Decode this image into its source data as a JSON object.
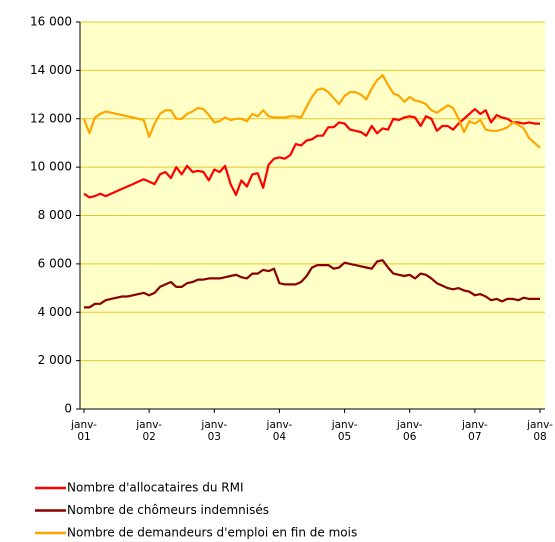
{
  "chart_data": {
    "type": "line",
    "categories": [
      "janv-01",
      null,
      null,
      null,
      null,
      null,
      null,
      null,
      null,
      null,
      null,
      null,
      "janv-02",
      null,
      null,
      null,
      null,
      null,
      null,
      null,
      null,
      null,
      null,
      null,
      "janv-03",
      null,
      null,
      null,
      null,
      null,
      null,
      null,
      null,
      null,
      null,
      null,
      "janv-04",
      null,
      null,
      null,
      null,
      null,
      null,
      null,
      null,
      null,
      null,
      null,
      "janv-05",
      null,
      null,
      null,
      null,
      null,
      null,
      null,
      null,
      null,
      null,
      null,
      "janv-06",
      null,
      null,
      null,
      null,
      null,
      null,
      null,
      null,
      null,
      null,
      null,
      "janv-07",
      null,
      null,
      null,
      null,
      null,
      null,
      null,
      null,
      null,
      null,
      null,
      "janv-08"
    ],
    "series": [
      {
        "name": "Nombre d'allocataires du RMI",
        "color": "#ff0000",
        "values": [
          8900,
          8750,
          8800,
          8900,
          8800,
          8900,
          9000,
          9100,
          9200,
          9300,
          9400,
          9500,
          9400,
          9300,
          9700,
          9800,
          9550,
          10000,
          9700,
          10050,
          9800,
          9850,
          9800,
          9450,
          9900,
          9800,
          10050,
          9300,
          8850,
          9450,
          9200,
          9700,
          9750,
          9150,
          10100,
          10350,
          10400,
          10350,
          10500,
          10950,
          10900,
          11100,
          11150,
          11300,
          11300,
          11650,
          11650,
          11850,
          11800,
          11550,
          11500,
          11450,
          11300,
          11700,
          11400,
          11600,
          11550,
          12000,
          11950,
          12050,
          12100,
          12050,
          11700,
          12100,
          12000,
          11500,
          11700,
          11700,
          11550,
          11800,
          12000,
          12200,
          12400,
          12200,
          12350,
          11850,
          12150,
          12050,
          12000,
          11850,
          11850,
          11800,
          11850,
          11800,
          11800
        ]
      },
      {
        "name": "Nombre de chômeurs indemnisés",
        "color": "#8b0000",
        "values": [
          4200,
          4200,
          4350,
          4350,
          4500,
          4550,
          4600,
          4650,
          4650,
          4700,
          4750,
          4800,
          4700,
          4800,
          5050,
          5150,
          5250,
          5050,
          5050,
          5200,
          5250,
          5350,
          5350,
          5400,
          5400,
          5400,
          5450,
          5500,
          5550,
          5450,
          5400,
          5600,
          5600,
          5750,
          5700,
          5800,
          5200,
          5150,
          5150,
          5150,
          5250,
          5500,
          5850,
          5950,
          5950,
          5950,
          5800,
          5850,
          6050,
          6000,
          5950,
          5900,
          5850,
          5800,
          6100,
          6150,
          5850,
          5600,
          5550,
          5500,
          5550,
          5400,
          5600,
          5550,
          5400,
          5200,
          5100,
          5000,
          4950,
          5000,
          4900,
          4850,
          4700,
          4750,
          4650,
          4500,
          4550,
          4450,
          4550,
          4550,
          4500,
          4600,
          4550,
          4550,
          4550
        ]
      },
      {
        "name": "Nombre de demandeurs d'emploi en fin de mois",
        "color": "#ffa500",
        "values": [
          12000,
          11400,
          12050,
          12200,
          12300,
          12250,
          12200,
          12150,
          12100,
          12050,
          12000,
          11950,
          11250,
          11800,
          12200,
          12350,
          12350,
          12000,
          12000,
          12200,
          12300,
          12450,
          12400,
          12150,
          11850,
          11900,
          12050,
          11950,
          12000,
          12000,
          11900,
          12200,
          12100,
          12350,
          12100,
          12050,
          12050,
          12050,
          12100,
          12100,
          12050,
          12500,
          12900,
          13200,
          13250,
          13100,
          12850,
          12600,
          12950,
          13100,
          13100,
          13000,
          12800,
          13250,
          13600,
          13800,
          13400,
          13050,
          12950,
          12700,
          12900,
          12750,
          12700,
          12600,
          12350,
          12250,
          12400,
          12550,
          12450,
          12000,
          11450,
          11900,
          11800,
          11950,
          11550,
          11500,
          11500,
          11550,
          11650,
          11850,
          11750,
          11600,
          11200,
          11000,
          10800
        ]
      }
    ],
    "ylim": [
      0,
      16000
    ],
    "yticks": [
      0,
      {
        "value": 2000,
        "label": "2 000"
      },
      {
        "value": 4000,
        "label": "4 000"
      },
      {
        "value": 6000,
        "label": "6 000"
      },
      {
        "value": 8000,
        "label": "8 000"
      },
      {
        "value": 10000,
        "label": "10 000"
      },
      {
        "value": 12000,
        "label": "12 000"
      },
      {
        "value": 14000,
        "label": "14 000"
      },
      {
        "value": 16000,
        "label": "16 000"
      }
    ],
    "grid": true
  }
}
